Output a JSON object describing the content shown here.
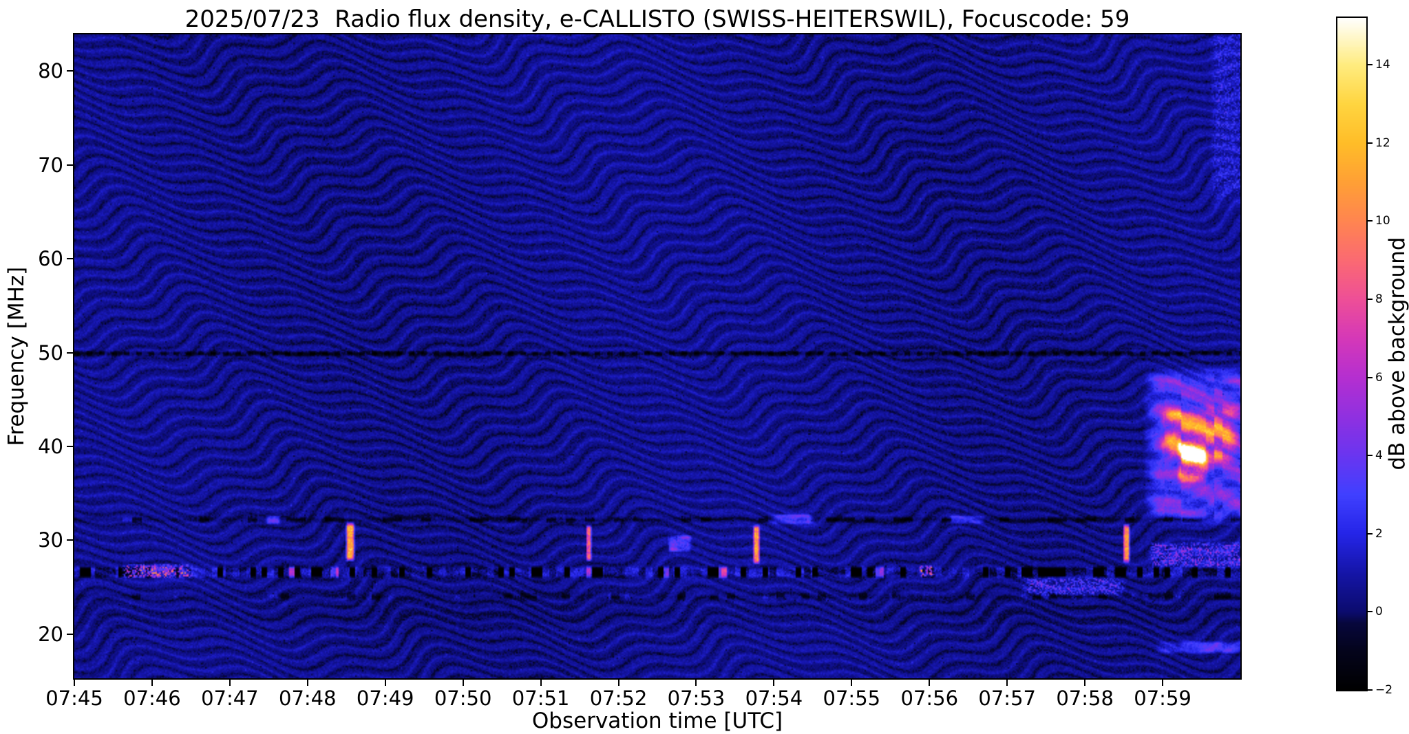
{
  "chart_data": {
    "type": "heatmap",
    "title": "2025/07/23  Radio flux density, e-CALLISTO (SWISS-HEITERSWIL), Focuscode: 59",
    "xlabel": "Observation time [UTC]",
    "ylabel": "Frequency [MHz]",
    "x_start_utc": "07:45",
    "x_end_utc": "08:00",
    "x_ticks": [
      {
        "minute": 0,
        "label": "07:45"
      },
      {
        "minute": 1,
        "label": "07:46"
      },
      {
        "minute": 2,
        "label": "07:47"
      },
      {
        "minute": 3,
        "label": "07:48"
      },
      {
        "minute": 4,
        "label": "07:49"
      },
      {
        "minute": 5,
        "label": "07:50"
      },
      {
        "minute": 6,
        "label": "07:51"
      },
      {
        "minute": 7,
        "label": "07:52"
      },
      {
        "minute": 8,
        "label": "07:53"
      },
      {
        "minute": 9,
        "label": "07:54"
      },
      {
        "minute": 10,
        "label": "07:55"
      },
      {
        "minute": 11,
        "label": "07:56"
      },
      {
        "minute": 12,
        "label": "07:57"
      },
      {
        "minute": 13,
        "label": "07:58"
      },
      {
        "minute": 14,
        "label": "07:59"
      }
    ],
    "y_range_mhz": [
      15.3,
      83.9
    ],
    "y_ticks": [
      {
        "mhz": 80,
        "label": "80"
      },
      {
        "mhz": 70,
        "label": "70"
      },
      {
        "mhz": 60,
        "label": "60"
      },
      {
        "mhz": 50,
        "label": "50"
      },
      {
        "mhz": 40,
        "label": "40"
      },
      {
        "mhz": 30,
        "label": "30"
      },
      {
        "mhz": 20,
        "label": "20"
      }
    ],
    "colorbar": {
      "label": "dB above background",
      "min": -2,
      "max": 15.2,
      "ticks": [
        {
          "value": 14,
          "label": "14"
        },
        {
          "value": 12,
          "label": "12"
        },
        {
          "value": 10,
          "label": "10"
        },
        {
          "value": 8,
          "label": "8"
        },
        {
          "value": 6,
          "label": "6"
        },
        {
          "value": 4,
          "label": "4"
        },
        {
          "value": 2,
          "label": "2"
        },
        {
          "value": 0,
          "label": "0"
        },
        {
          "value": -2,
          "label": "−2"
        }
      ]
    },
    "colormap_stops": [
      {
        "v": -2.0,
        "c": "#000000"
      },
      {
        "v": -1.0,
        "c": "#04041c"
      },
      {
        "v": -0.3,
        "c": "#07073c"
      },
      {
        "v": 0.0,
        "c": "#0b0b6e"
      },
      {
        "v": 1.0,
        "c": "#1515a8"
      },
      {
        "v": 2.0,
        "c": "#2525e8"
      },
      {
        "v": 3.0,
        "c": "#4040ff"
      },
      {
        "v": 4.0,
        "c": "#6a35f0"
      },
      {
        "v": 5.0,
        "c": "#9030e0"
      },
      {
        "v": 6.0,
        "c": "#b52fd0"
      },
      {
        "v": 7.0,
        "c": "#d538b8"
      },
      {
        "v": 8.0,
        "c": "#ee4f97"
      },
      {
        "v": 9.0,
        "c": "#fb6a72"
      },
      {
        "v": 10.0,
        "c": "#ff8550"
      },
      {
        "v": 11.0,
        "c": "#ffa035"
      },
      {
        "v": 12.0,
        "c": "#ffbd28"
      },
      {
        "v": 13.0,
        "c": "#ffd540"
      },
      {
        "v": 14.0,
        "c": "#ffec80"
      },
      {
        "v": 15.2,
        "c": "#ffffff"
      }
    ],
    "background": {
      "base_db": 0.5,
      "ripple_amp_db": 0.55,
      "ripple_period_mhz": 1.35,
      "noise_db": 0.45,
      "undulation": [
        {
          "amp_mhz": 1.8,
          "period_min": 3.8,
          "freq_tilt": 0.15
        },
        {
          "amp_mhz": 0.8,
          "period_min": 1.3,
          "freq_tilt": 0.4
        }
      ]
    },
    "rfi_bands": [
      {
        "mhz": 49.9,
        "half_width_mhz": 0.3,
        "style": "dark-dashed"
      },
      {
        "mhz": 32.2,
        "half_width_mhz": 0.4,
        "style": "dark-variable"
      },
      {
        "mhz": 26.6,
        "half_width_mhz": 0.45,
        "style": "active-mixed"
      },
      {
        "mhz": 24.0,
        "half_width_mhz": 0.55,
        "style": "dark-speckled"
      }
    ],
    "events": [
      {
        "t_start": 3.52,
        "t_end": 3.58,
        "f_low": 28.2,
        "f_high": 31.5,
        "peak_db": 11,
        "t_feather": 0.03,
        "f_feather": 0.5,
        "texture": "streak",
        "desc": "bright orange vertical streak ~07:48.5"
      },
      {
        "t_start": 6.6,
        "t_end": 6.64,
        "f_low": 28.1,
        "f_high": 31.3,
        "peak_db": 8,
        "t_feather": 0.015,
        "f_feather": 0.4,
        "texture": "streak",
        "desc": "thin bright streak ~07:51.6"
      },
      {
        "t_start": 7.68,
        "t_end": 7.9,
        "f_low": 29.0,
        "f_high": 30.3,
        "peak_db": 5,
        "t_feather": 0.05,
        "f_feather": 0.3,
        "texture": "patchy",
        "desc": "violet patch ~07:52.8"
      },
      {
        "t_start": 8.75,
        "t_end": 8.8,
        "f_low": 27.9,
        "f_high": 31.2,
        "peak_db": 10,
        "t_feather": 0.02,
        "f_feather": 0.5,
        "texture": "streak",
        "desc": "orange vertical streak ~07:53.8"
      },
      {
        "t_start": 2.5,
        "t_end": 2.62,
        "f_low": 31.9,
        "f_high": 32.5,
        "peak_db": 3,
        "t_feather": 0.04,
        "f_feather": 0.2,
        "texture": "patchy",
        "desc": "short violet dash on 32 MHz line ~07:47.5"
      },
      {
        "t_start": 9.02,
        "t_end": 9.45,
        "f_low": 31.9,
        "f_high": 32.6,
        "peak_db": 3.6,
        "t_feather": 0.08,
        "f_feather": 0.25,
        "texture": "patchy",
        "desc": "bright blue segment on 32 MHz line ~07:54.3"
      },
      {
        "t_start": 11.3,
        "t_end": 11.65,
        "f_low": 31.9,
        "f_high": 32.5,
        "peak_db": 2.2,
        "t_feather": 0.08,
        "f_feather": 0.2,
        "texture": "patchy",
        "desc": "faint blue segment on 32 MHz line ~07:56.4"
      },
      {
        "t_start": 13.51,
        "t_end": 13.56,
        "f_low": 28.0,
        "f_high": 31.3,
        "peak_db": 10,
        "t_feather": 0.02,
        "f_feather": 0.5,
        "texture": "streak",
        "desc": "orange vertical streak ~07:58.5"
      },
      {
        "t_start": 13.95,
        "t_end": 15.05,
        "f_low": 33.0,
        "f_high": 47.0,
        "peak_db": 4,
        "t_feather": 0.2,
        "f_feather": 1.5,
        "texture": "patchy",
        "desc": "broad violet emission patch after 07:59"
      },
      {
        "t_start": 14.1,
        "t_end": 14.85,
        "f_low": 39.0,
        "f_high": 43.5,
        "peak_db": 6.5,
        "t_feather": 0.15,
        "f_feather": 1.0,
        "texture": "patchy",
        "desc": "pink core of right-edge patch"
      },
      {
        "t_start": 14.26,
        "t_end": 14.52,
        "f_low": 36.8,
        "f_high": 40.0,
        "peak_db": 9.5,
        "t_feather": 0.08,
        "f_feather": 0.8,
        "texture": "patchy",
        "desc": "orange brightest core of right-edge patch"
      },
      {
        "t_start": 13.9,
        "t_end": 15.05,
        "f_low": 27.4,
        "f_high": 29.5,
        "peak_db": 3.2,
        "t_feather": 0.1,
        "f_feather": 0.4,
        "texture": "speckle",
        "desc": "blue speckle band lower right"
      },
      {
        "t_start": 14.0,
        "t_end": 15.05,
        "f_low": 18.2,
        "f_high": 19.0,
        "peak_db": 2.8,
        "t_feather": 0.1,
        "f_feather": 0.3,
        "texture": "patchy",
        "desc": "blue streak near 18.6 MHz right edge"
      },
      {
        "t_start": 12.3,
        "t_end": 13.4,
        "f_low": 24.4,
        "f_high": 25.8,
        "peak_db": 2.6,
        "t_feather": 0.15,
        "f_feather": 0.4,
        "texture": "speckle",
        "desc": "blue speckle brightening ~07:57.5"
      },
      {
        "t_start": 0.68,
        "t_end": 1.45,
        "f_low": 26.2,
        "f_high": 27.2,
        "peak_db": 6,
        "t_feather": 0.08,
        "f_feather": 0.3,
        "texture": "speckle",
        "desc": "magenta speckles 07:45.8–07:46.4"
      },
      {
        "t_start": 10.9,
        "t_end": 11.03,
        "f_low": 26.3,
        "f_high": 27.1,
        "peak_db": 7.5,
        "t_feather": 0.04,
        "f_feather": 0.25,
        "texture": "speckle",
        "desc": "pink spot ~07:55.9"
      },
      {
        "t_start": 14.7,
        "t_end": 15.05,
        "f_low": 68.0,
        "f_high": 84.0,
        "peak_db": 1.5,
        "t_feather": 0.1,
        "f_feather": 3.0,
        "texture": "speckle",
        "desc": "faint blue smear top right corner"
      }
    ]
  }
}
